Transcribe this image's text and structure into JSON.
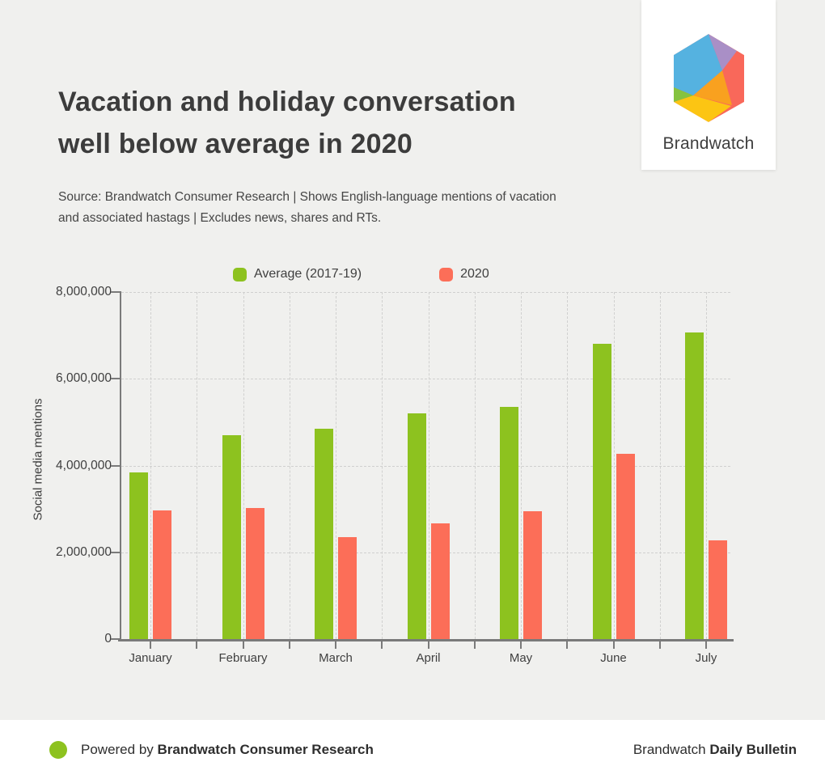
{
  "header": {
    "title": "Vacation and holiday conversation\nwell below average in 2020",
    "source": "Source: Brandwatch Consumer Research | Shows English-language mentions of vacation\nand associated hastags | Excludes news, shares and RTs."
  },
  "logo": {
    "text": "Brandwatch",
    "colors": {
      "blue": "#55b2e0",
      "purple": "#a98fc6",
      "salmon": "#f9685a",
      "orange": "#f9a11f",
      "yellow": "#fcc513",
      "green": "#85c33f"
    }
  },
  "chart_data": {
    "type": "bar",
    "categories": [
      "January",
      "February",
      "March",
      "April",
      "May",
      "June",
      "July"
    ],
    "series": [
      {
        "name": "Average (2017-19)",
        "color": "#8dc21f",
        "values": [
          3850000,
          4700000,
          4850000,
          5210000,
          5350000,
          6800000,
          7060000
        ]
      },
      {
        "name": "2020",
        "color": "#fc6e58",
        "values": [
          2970000,
          3020000,
          2350000,
          2670000,
          2940000,
          4270000,
          2280000
        ]
      }
    ],
    "title": "Vacation and holiday conversation well below average in 2020",
    "xlabel": "",
    "ylabel": "Social media mentions",
    "ylim": [
      0,
      8000000
    ],
    "yticks": [
      0,
      2000000,
      4000000,
      6000000,
      8000000
    ],
    "ytick_labels": [
      "0",
      "2,000,000",
      "4,000,000",
      "6,000,000",
      "8,000,000"
    ],
    "grid": "dashed",
    "legend_position": "top"
  },
  "footer": {
    "powered_prefix": "Powered by ",
    "powered_bold": "Brandwatch Consumer Research",
    "right_prefix": "Brandwatch ",
    "right_bold": "Daily Bulletin",
    "dot_color": "#8dc21f"
  }
}
